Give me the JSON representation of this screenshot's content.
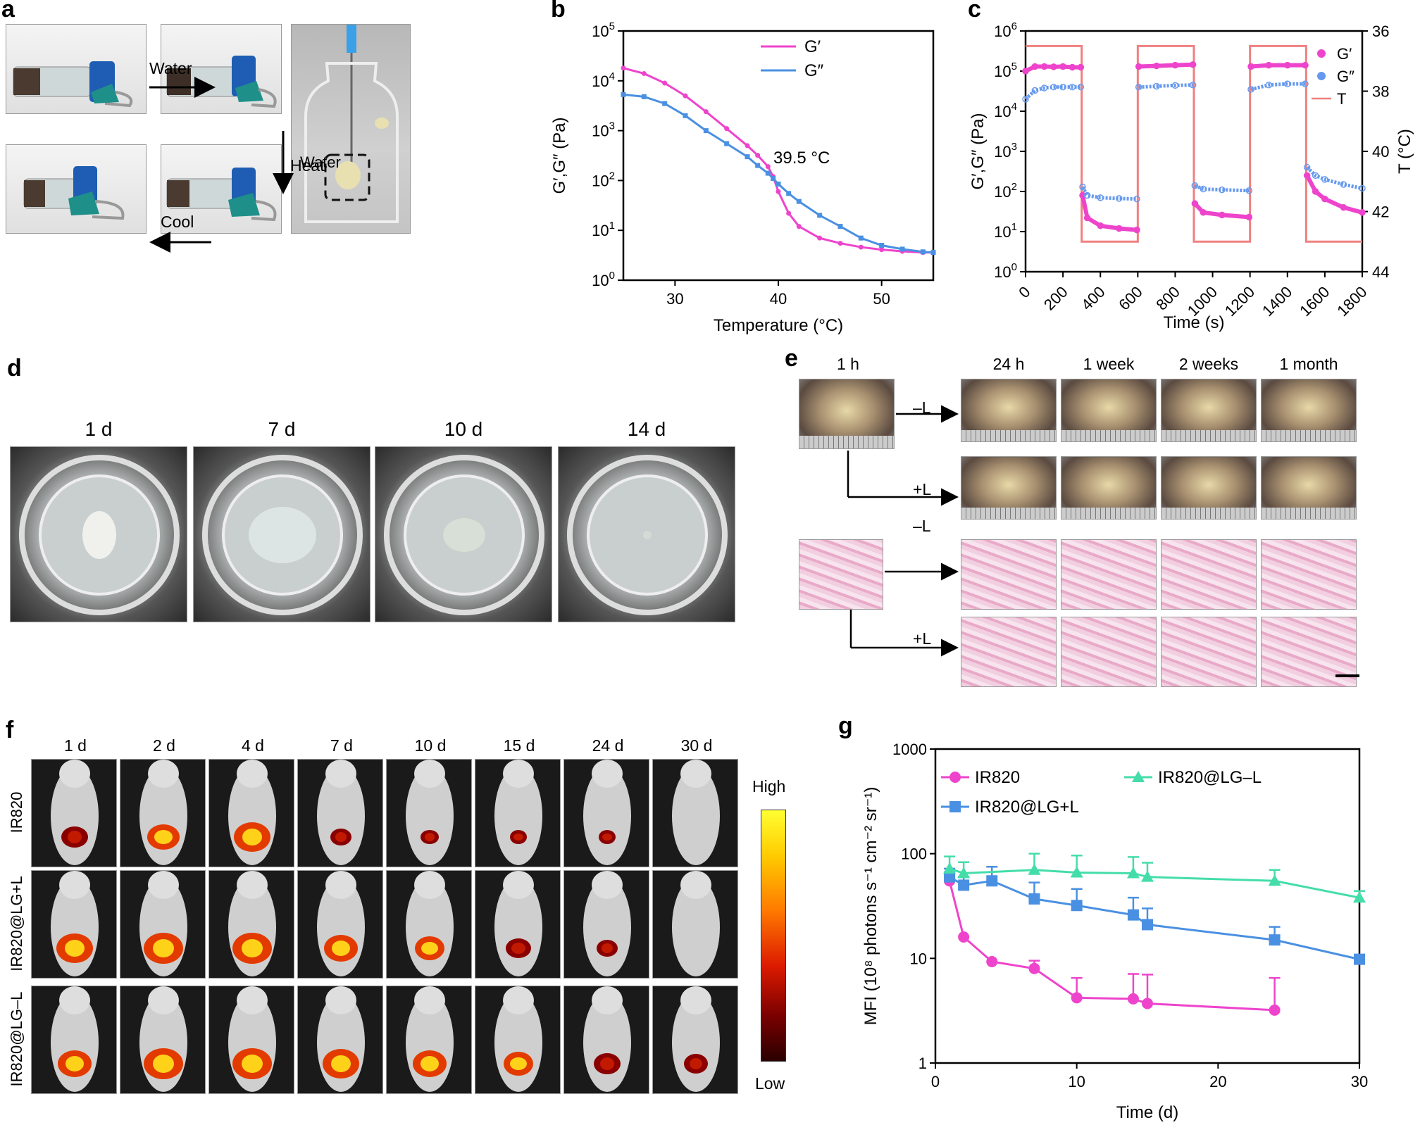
{
  "panels": {
    "a": {
      "label": "a",
      "arrows": {
        "water": "Water",
        "heat": "Heat",
        "cool": "Cool"
      },
      "vial_label": "Water"
    },
    "b": {
      "label": "b"
    },
    "c": {
      "label": "c"
    },
    "d": {
      "label": "d",
      "times": [
        "1 d",
        "7 d",
        "10 d",
        "14 d"
      ]
    },
    "e": {
      "label": "e",
      "start": "1 h",
      "times": [
        "24 h",
        "1 week",
        "2 weeks",
        "1 month"
      ],
      "groups": {
        "minus": "–L",
        "plus": "+L"
      }
    },
    "f": {
      "label": "f",
      "times": [
        "1 d",
        "2 d",
        "4 d",
        "7 d",
        "10 d",
        "15 d",
        "24 d",
        "30 d"
      ],
      "rows": [
        "IR820",
        "IR820@LG+L",
        "IR820@LG–L"
      ],
      "colorbar": {
        "high": "High",
        "low": "Low"
      }
    },
    "g": {
      "label": "g"
    }
  },
  "chart_data": [
    {
      "id": "b",
      "type": "line",
      "xlabel": "Temperature (°C)",
      "ylabel": "G′,G″ (Pa)",
      "xlim": [
        25,
        55
      ],
      "ylim": [
        1,
        100000
      ],
      "yscale": "log",
      "xticks": [
        "30",
        "40",
        "50"
      ],
      "yticks": [
        "10",
        "10",
        "10",
        "10",
        "10",
        "10"
      ],
      "ytick_exponents": [
        "0",
        "1",
        "2",
        "3",
        "4",
        "5"
      ],
      "annotation": "39.5 °C",
      "legend_position": "top",
      "series": [
        {
          "name": "G′",
          "color": "#ee44cc",
          "x": [
            25,
            27,
            29,
            31,
            33,
            35,
            37,
            38,
            39,
            39.5,
            40,
            41,
            42,
            44,
            46,
            48,
            50,
            52,
            54,
            55
          ],
          "y": [
            18000,
            14000,
            9000,
            5000,
            2400,
            1100,
            500,
            320,
            190,
            120,
            60,
            22,
            12,
            7,
            5.5,
            4.6,
            4.1,
            3.8,
            3.6,
            3.6
          ]
        },
        {
          "name": "G″",
          "color": "#4a90e2",
          "x": [
            25,
            27,
            29,
            31,
            33,
            35,
            37,
            38,
            39,
            39.5,
            40,
            41,
            42,
            44,
            46,
            48,
            50,
            52,
            54,
            55
          ],
          "y": [
            5300,
            4800,
            3500,
            2000,
            1000,
            550,
            300,
            200,
            140,
            110,
            85,
            55,
            38,
            20,
            12,
            7,
            5,
            4.2,
            3.7,
            3.6
          ]
        }
      ]
    },
    {
      "id": "c",
      "type": "scatter",
      "xlabel": "Time (s)",
      "ylabel": "G′,G″ (Pa)",
      "y2label": "T (°C)",
      "xlim": [
        0,
        1800
      ],
      "ylim": [
        1,
        1000000
      ],
      "yscale": "log",
      "y2lim": [
        36,
        44
      ],
      "y2_inverted": true,
      "xticks": [
        "0",
        "200",
        "400",
        "600",
        "800",
        "1000",
        "1200",
        "1400",
        "1600",
        "1800"
      ],
      "yticks": [
        "10",
        "10",
        "10",
        "10",
        "10",
        "10",
        "10"
      ],
      "ytick_exponents": [
        "0",
        "1",
        "2",
        "3",
        "4",
        "5",
        "6"
      ],
      "y2ticks": [
        "36",
        "38",
        "40",
        "42",
        "44"
      ],
      "legend_position": "top-right",
      "series": [
        {
          "name": "G′",
          "color": "#ee44cc",
          "x": [
            0,
            50,
            100,
            150,
            200,
            250,
            295,
            305,
            330,
            400,
            500,
            595,
            605,
            700,
            800,
            895,
            905,
            950,
            1050,
            1195,
            1205,
            1300,
            1400,
            1495,
            1505,
            1550,
            1600,
            1700,
            1800
          ],
          "y": [
            100000,
            130000,
            130000,
            128000,
            130000,
            125000,
            125000,
            80,
            22,
            14,
            12,
            11,
            130000,
            135000,
            140000,
            145000,
            50,
            30,
            26,
            23,
            130000,
            140000,
            140000,
            140000,
            250,
            100,
            65,
            40,
            30
          ]
        },
        {
          "name": "G″",
          "color": "#6699ee",
          "x": [
            0,
            50,
            100,
            150,
            200,
            250,
            295,
            305,
            330,
            400,
            500,
            595,
            605,
            700,
            800,
            895,
            905,
            950,
            1050,
            1195,
            1205,
            1300,
            1400,
            1495,
            1505,
            1550,
            1600,
            1700,
            1800
          ],
          "y": [
            20000,
            33000,
            38000,
            40000,
            40000,
            40000,
            40000,
            130,
            80,
            70,
            67,
            65,
            40000,
            42000,
            44000,
            45000,
            140,
            115,
            110,
            105,
            35000,
            45000,
            48000,
            48000,
            400,
            250,
            200,
            150,
            120
          ]
        },
        {
          "name": "T",
          "color": "#f08080",
          "x": [
            0,
            300,
            300,
            600,
            600,
            900,
            900,
            1200,
            1200,
            1500,
            1500,
            1800
          ],
          "y": [
            36.5,
            36.5,
            43,
            43,
            36.5,
            36.5,
            43,
            43,
            36.5,
            36.5,
            43,
            43
          ]
        }
      ]
    },
    {
      "id": "g",
      "type": "line",
      "xlabel": "Time (d)",
      "ylabel": "MFI (10⁸ photons s⁻¹ cm⁻² sr⁻¹)",
      "xlim": [
        0,
        30
      ],
      "ylim": [
        1,
        1000
      ],
      "yscale": "log",
      "xticks": [
        "0",
        "10",
        "20",
        "30"
      ],
      "yticks": [
        "1",
        "10",
        "100",
        "1000"
      ],
      "legend_position": "top",
      "series": [
        {
          "name": "IR820",
          "color": "#ee44cc",
          "marker": "circle",
          "x": [
            1,
            2,
            4,
            7,
            10,
            14,
            15,
            24
          ],
          "y": [
            55,
            16,
            9.3,
            8,
            4.2,
            4.1,
            3.7,
            3.2
          ],
          "err": [
            5,
            0,
            0,
            1.5,
            2.3,
            3,
            3.3,
            3.3
          ]
        },
        {
          "name": "IR820@LG+L",
          "color": "#4a90e2",
          "marker": "square",
          "x": [
            1,
            2,
            4,
            7,
            10,
            14,
            15,
            24,
            30
          ],
          "y": [
            60,
            50,
            55,
            37,
            32,
            26,
            21,
            15,
            9.8
          ],
          "err": [
            12,
            10,
            20,
            16,
            14,
            12,
            9,
            5,
            1
          ]
        },
        {
          "name": "IR820@LG–L",
          "color": "#44ddaa",
          "marker": "triangle",
          "x": [
            1,
            2,
            7,
            10,
            14,
            15,
            24,
            30
          ],
          "y": [
            72,
            65,
            70,
            66,
            65,
            60,
            55,
            38
          ],
          "err": [
            22,
            18,
            30,
            30,
            28,
            22,
            15,
            6
          ]
        }
      ]
    }
  ]
}
